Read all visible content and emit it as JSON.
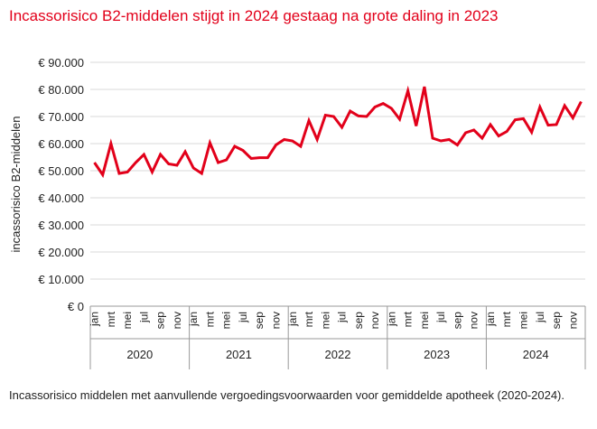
{
  "chart_data": {
    "type": "line",
    "title": "Incassorisico B2-middelen stijgt in 2024 gestaag na grote daling in 2023",
    "ylabel": "incassorisico B2-middelen",
    "xlabel": "",
    "ylim": [
      0,
      90000
    ],
    "yticks": [
      "€ 0",
      "€ 10.000",
      "€ 20.000",
      "€ 30.000",
      "€ 40.000",
      "€ 50.000",
      "€ 60.000",
      "€ 70.000",
      "€ 80.000",
      "€ 90.000"
    ],
    "month_labels": [
      "jan",
      "mrt",
      "mei",
      "jul",
      "sep",
      "nov"
    ],
    "years": [
      "2020",
      "2021",
      "2022",
      "2023",
      "2024"
    ],
    "grid": true,
    "color": "#e2001a",
    "series": [
      {
        "name": "incassorisico",
        "values": [
          53000,
          48500,
          60000,
          49000,
          49500,
          53000,
          56000,
          49500,
          56000,
          52500,
          52000,
          57000,
          51000,
          49000,
          60300,
          53000,
          54000,
          59000,
          57500,
          54500,
          54800,
          54800,
          59500,
          61500,
          61000,
          59000,
          68500,
          61500,
          70500,
          70000,
          66000,
          72000,
          70200,
          70000,
          73500,
          74800,
          73000,
          69000,
          79500,
          66500,
          81000,
          62000,
          61000,
          61500,
          59500,
          64000,
          65000,
          62000,
          67000,
          62800,
          64500,
          68800,
          69200,
          64200,
          73500,
          66800,
          67000,
          74000,
          69500,
          75500
        ]
      }
    ]
  },
  "caption": "Incassorisico middelen met aanvullende vergoedingsvoorwaarden voor gemiddelde apotheek (2020-2024)."
}
